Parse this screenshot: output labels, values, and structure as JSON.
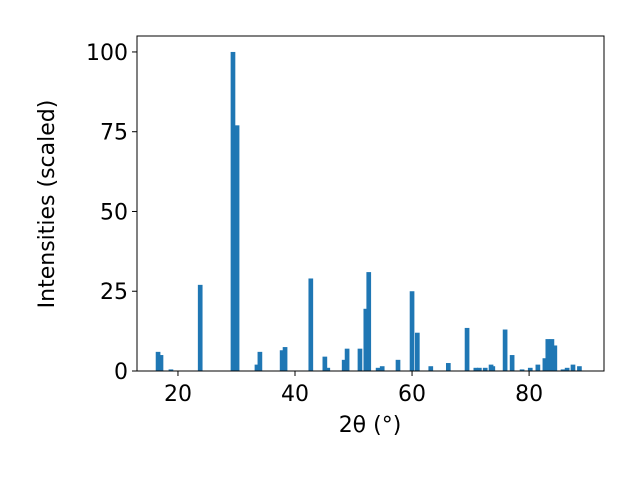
{
  "chart_data": {
    "type": "bar",
    "xlabel": "2θ (°)",
    "ylabel": "Intensities (scaled)",
    "color": "#1f77b4",
    "bar_width": 0.8,
    "x": [
      16.6,
      17.1,
      18.8,
      23.8,
      29.4,
      30.1,
      33.5,
      34.0,
      37.8,
      38.3,
      42.7,
      45.1,
      45.6,
      48.4,
      48.9,
      51.1,
      52.1,
      52.6,
      54.2,
      54.9,
      57.6,
      60.0,
      60.9,
      63.2,
      66.2,
      69.4,
      70.9,
      71.5,
      72.5,
      73.5,
      73.8,
      75.9,
      77.1,
      78.8,
      80.2,
      81.5,
      82.7,
      83.2,
      83.9,
      84.4,
      85.8,
      86.5,
      87.5,
      88.6
    ],
    "values": [
      6,
      5,
      0.5,
      27,
      100,
      77,
      2,
      6,
      6.5,
      7.5,
      29,
      4.5,
      1,
      3.5,
      7,
      7,
      19.5,
      31,
      1,
      1.5,
      3.5,
      25,
      12,
      1.5,
      2.5,
      13.5,
      1,
      1,
      1,
      2,
      1.5,
      13,
      5,
      0.5,
      1,
      2,
      4,
      10,
      10,
      8,
      0.5,
      1,
      2,
      1.5
    ],
    "xlim": [
      13,
      92.8
    ],
    "ylim": [
      0,
      105
    ],
    "xticks": [
      20,
      40,
      60,
      80
    ],
    "yticks": [
      0,
      25,
      50,
      75,
      100
    ],
    "grid": false
  }
}
